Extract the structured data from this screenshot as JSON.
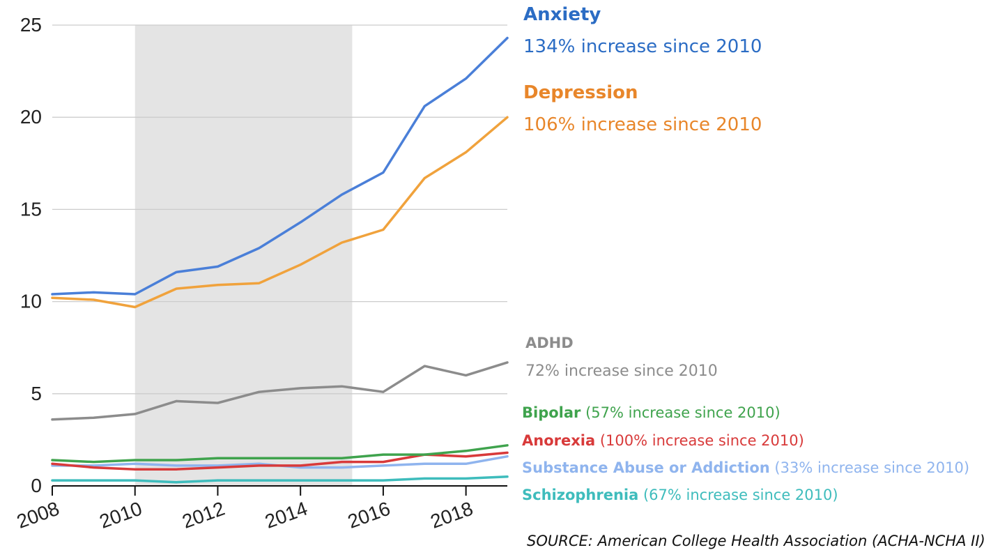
{
  "chart_data": {
    "type": "line",
    "x": [
      2008,
      2009,
      2010,
      2011,
      2012,
      2013,
      2014,
      2015,
      2016,
      2017,
      2018,
      2019
    ],
    "xticks": [
      "2008",
      "2010",
      "2012",
      "2014",
      "2016",
      "2018"
    ],
    "yticks": [
      "0",
      "5",
      "10",
      "15",
      "20",
      "25"
    ],
    "ylim": [
      0,
      25
    ],
    "xlim": [
      2008,
      2019
    ],
    "grid": true,
    "shaded_region": [
      2010,
      2015.25
    ],
    "series": [
      {
        "name": "Anxiety",
        "color": "#4a7fd8",
        "values": [
          10.4,
          10.5,
          10.4,
          11.6,
          11.9,
          12.9,
          14.3,
          15.8,
          17.0,
          20.6,
          22.1,
          24.3
        ]
      },
      {
        "name": "Depression",
        "color": "#f0a23c",
        "values": [
          10.2,
          10.1,
          9.7,
          10.7,
          10.9,
          11.0,
          12.0,
          13.2,
          13.9,
          16.7,
          18.1,
          20.0
        ]
      },
      {
        "name": "ADHD",
        "color": "#8c8c8c",
        "values": [
          3.6,
          3.7,
          3.9,
          4.6,
          4.5,
          5.1,
          5.3,
          5.4,
          5.1,
          6.5,
          6.0,
          6.7
        ]
      },
      {
        "name": "Bipolar",
        "color": "#3fa34d",
        "values": [
          1.4,
          1.3,
          1.4,
          1.4,
          1.5,
          1.5,
          1.5,
          1.5,
          1.7,
          1.7,
          1.9,
          2.2
        ]
      },
      {
        "name": "Anorexia",
        "color": "#d83a3a",
        "values": [
          1.2,
          1.0,
          0.9,
          0.9,
          1.0,
          1.1,
          1.1,
          1.3,
          1.3,
          1.7,
          1.6,
          1.8
        ]
      },
      {
        "name": "Substance Abuse or Addiction",
        "color": "#8fb4ee",
        "values": [
          1.1,
          1.1,
          1.2,
          1.1,
          1.1,
          1.2,
          1.0,
          1.0,
          1.1,
          1.2,
          1.2,
          1.6
        ]
      },
      {
        "name": "Schizophrenia",
        "color": "#3ebcbc",
        "values": [
          0.3,
          0.3,
          0.3,
          0.2,
          0.3,
          0.3,
          0.3,
          0.3,
          0.3,
          0.4,
          0.4,
          0.5
        ]
      }
    ]
  },
  "annotations": {
    "anxiety": {
      "name": "Anxiety",
      "sub": "134% increase since 2010",
      "color": "#2b6cc4"
    },
    "depression": {
      "name": "Depression",
      "sub": "106% increase since 2010",
      "color": "#e8862a"
    },
    "adhd": {
      "name": "ADHD",
      "sub": "72% increase since 2010",
      "color": "#8c8c8c"
    },
    "bipolar": {
      "name": "Bipolar",
      "sub": "(57% increase since 2010)",
      "color": "#3fa34d"
    },
    "anorexia": {
      "name": "Anorexia",
      "sub": "(100% increase since 2010)",
      "color": "#d83a3a"
    },
    "substance": {
      "name": "Substance Abuse or Addiction",
      "sub": "(33% increase since 2010)",
      "color": "#8fb4ee"
    },
    "schizophrenia": {
      "name": "Schizophrenia",
      "sub": "(67% increase since 2010)",
      "color": "#3ebcbc"
    }
  },
  "source": "SOURCE: American College Health Association (ACHA-NCHA II)"
}
